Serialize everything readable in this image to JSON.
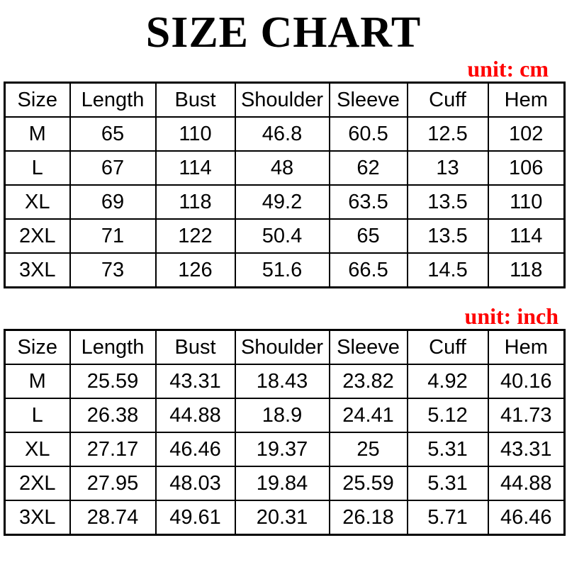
{
  "title": "SIZE CHART",
  "accent_color": "#ff0000",
  "chart_data": [
    {
      "type": "table",
      "unit_label": "unit: cm",
      "unit": "cm",
      "columns": [
        "Size",
        "Length",
        "Bust",
        "Shoulder",
        "Sleeve",
        "Cuff",
        "Hem"
      ],
      "rows": [
        [
          "M",
          "65",
          "110",
          "46.8",
          "60.5",
          "12.5",
          "102"
        ],
        [
          "L",
          "67",
          "114",
          "48",
          "62",
          "13",
          "106"
        ],
        [
          "XL",
          "69",
          "118",
          "49.2",
          "63.5",
          "13.5",
          "110"
        ],
        [
          "2XL",
          "71",
          "122",
          "50.4",
          "65",
          "13.5",
          "114"
        ],
        [
          "3XL",
          "73",
          "126",
          "51.6",
          "66.5",
          "14.5",
          "118"
        ]
      ]
    },
    {
      "type": "table",
      "unit_label": "unit: inch",
      "unit": "inch",
      "columns": [
        "Size",
        "Length",
        "Bust",
        "Shoulder",
        "Sleeve",
        "Cuff",
        "Hem"
      ],
      "rows": [
        [
          "M",
          "25.59",
          "43.31",
          "18.43",
          "23.82",
          "4.92",
          "40.16"
        ],
        [
          "L",
          "26.38",
          "44.88",
          "18.9",
          "24.41",
          "5.12",
          "41.73"
        ],
        [
          "XL",
          "27.17",
          "46.46",
          "19.37",
          "25",
          "5.31",
          "43.31"
        ],
        [
          "2XL",
          "27.95",
          "48.03",
          "19.84",
          "25.59",
          "5.31",
          "44.88"
        ],
        [
          "3XL",
          "28.74",
          "49.61",
          "20.31",
          "26.18",
          "5.71",
          "46.46"
        ]
      ]
    }
  ]
}
